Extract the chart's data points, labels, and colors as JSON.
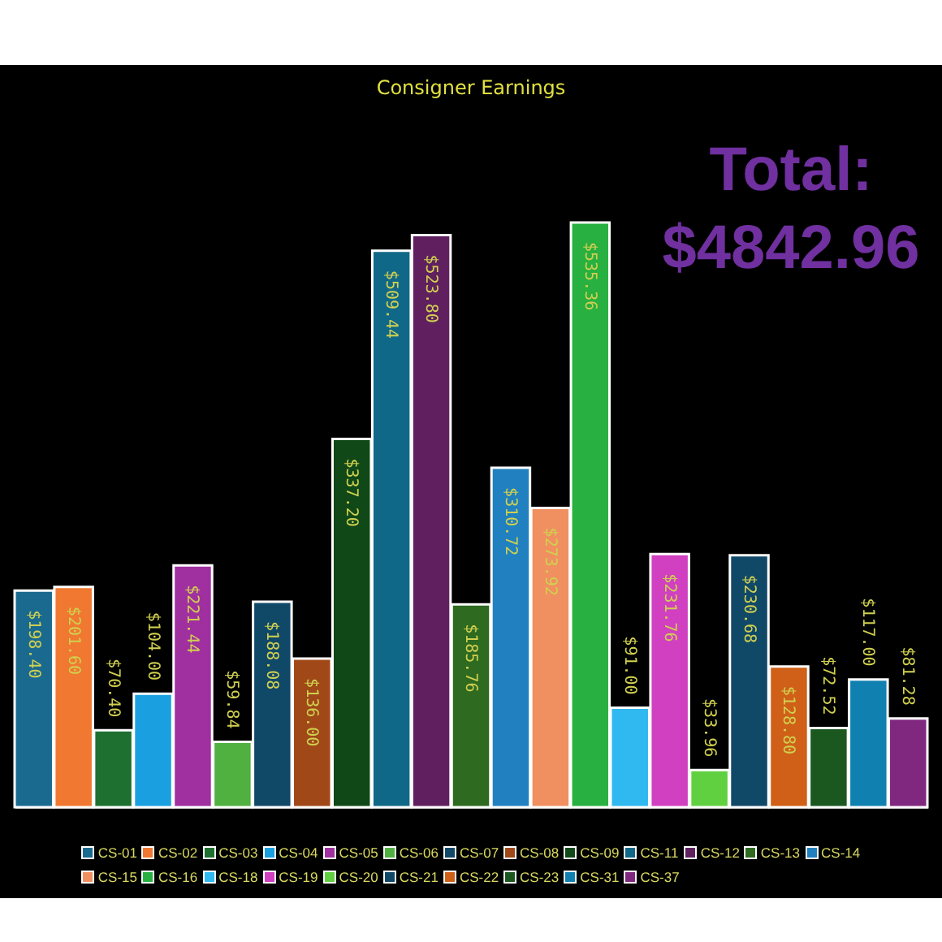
{
  "chart_data": {
    "type": "bar",
    "title": "Consigner Earnings",
    "annotations": [
      "Total: $4842.96"
    ],
    "categories": [
      null,
      null,
      null,
      null,
      null,
      null,
      null,
      null,
      null,
      null,
      null,
      null,
      null,
      null,
      null,
      null,
      null,
      null,
      null,
      null,
      null,
      null,
      null
    ],
    "series": [
      {
        "name": "CS-01",
        "color": "#1a6a90",
        "values": [
          198.4,
          null,
          null,
          null,
          null,
          null,
          null,
          null,
          null,
          null,
          null,
          null,
          null,
          null,
          null,
          null,
          null,
          null,
          null,
          null,
          null,
          null,
          null
        ],
        "value_labels": [
          "$198.40",
          null,
          null,
          null,
          null,
          null,
          null,
          null,
          null,
          null,
          null,
          null,
          null,
          null,
          null,
          null,
          null,
          null,
          null,
          null,
          null,
          null,
          null
        ]
      },
      {
        "name": "CS-02",
        "color": "#f07830",
        "values": [
          null,
          201.6,
          null,
          null,
          null,
          null,
          null,
          null,
          null,
          null,
          null,
          null,
          null,
          null,
          null,
          null,
          null,
          null,
          null,
          null,
          null,
          null,
          null
        ],
        "value_labels": [
          null,
          "$201.60",
          null,
          null,
          null,
          null,
          null,
          null,
          null,
          null,
          null,
          null,
          null,
          null,
          null,
          null,
          null,
          null,
          null,
          null,
          null,
          null,
          null
        ]
      },
      {
        "name": "CS-03",
        "color": "#1e7030",
        "values": [
          null,
          null,
          70.4,
          null,
          null,
          null,
          null,
          null,
          null,
          null,
          null,
          null,
          null,
          null,
          null,
          null,
          null,
          null,
          null,
          null,
          null,
          null,
          null
        ],
        "value_labels": [
          null,
          null,
          "$70.40",
          null,
          null,
          null,
          null,
          null,
          null,
          null,
          null,
          null,
          null,
          null,
          null,
          null,
          null,
          null,
          null,
          null,
          null,
          null,
          null
        ]
      },
      {
        "name": "CS-04",
        "color": "#1aa0e0",
        "values": [
          null,
          null,
          null,
          104.0,
          null,
          null,
          null,
          null,
          null,
          null,
          null,
          null,
          null,
          null,
          null,
          null,
          null,
          null,
          null,
          null,
          null,
          null,
          null
        ],
        "value_labels": [
          null,
          null,
          null,
          "$104.00",
          null,
          null,
          null,
          null,
          null,
          null,
          null,
          null,
          null,
          null,
          null,
          null,
          null,
          null,
          null,
          null,
          null,
          null,
          null
        ]
      },
      {
        "name": "CS-05",
        "color": "#a030a0",
        "values": [
          null,
          null,
          null,
          null,
          221.44,
          null,
          null,
          null,
          null,
          null,
          null,
          null,
          null,
          null,
          null,
          null,
          null,
          null,
          null,
          null,
          null,
          null,
          null
        ],
        "value_labels": [
          null,
          null,
          null,
          null,
          "$221.44",
          null,
          null,
          null,
          null,
          null,
          null,
          null,
          null,
          null,
          null,
          null,
          null,
          null,
          null,
          null,
          null,
          null,
          null
        ]
      },
      {
        "name": "CS-06",
        "color": "#50b040",
        "values": [
          null,
          null,
          null,
          null,
          null,
          59.84,
          null,
          null,
          null,
          null,
          null,
          null,
          null,
          null,
          null,
          null,
          null,
          null,
          null,
          null,
          null,
          null,
          null
        ],
        "value_labels": [
          null,
          null,
          null,
          null,
          null,
          "$59.84",
          null,
          null,
          null,
          null,
          null,
          null,
          null,
          null,
          null,
          null,
          null,
          null,
          null,
          null,
          null,
          null,
          null
        ]
      },
      {
        "name": "CS-07",
        "color": "#104868",
        "values": [
          null,
          null,
          null,
          null,
          null,
          null,
          188.08,
          null,
          null,
          null,
          null,
          null,
          null,
          null,
          null,
          null,
          null,
          null,
          null,
          null,
          null,
          null,
          null
        ],
        "value_labels": [
          null,
          null,
          null,
          null,
          null,
          null,
          "$188.08",
          null,
          null,
          null,
          null,
          null,
          null,
          null,
          null,
          null,
          null,
          null,
          null,
          null,
          null,
          null,
          null
        ]
      },
      {
        "name": "CS-08",
        "color": "#a04818",
        "values": [
          null,
          null,
          null,
          null,
          null,
          null,
          null,
          136.0,
          null,
          null,
          null,
          null,
          null,
          null,
          null,
          null,
          null,
          null,
          null,
          null,
          null,
          null,
          null
        ],
        "value_labels": [
          null,
          null,
          null,
          null,
          null,
          null,
          null,
          "$136.00",
          null,
          null,
          null,
          null,
          null,
          null,
          null,
          null,
          null,
          null,
          null,
          null,
          null,
          null,
          null
        ]
      },
      {
        "name": "CS-09",
        "color": "#104818",
        "values": [
          null,
          null,
          null,
          null,
          null,
          null,
          null,
          null,
          337.2,
          null,
          null,
          null,
          null,
          null,
          null,
          null,
          null,
          null,
          null,
          null,
          null,
          null,
          null
        ],
        "value_labels": [
          null,
          null,
          null,
          null,
          null,
          null,
          null,
          null,
          "$337.20",
          null,
          null,
          null,
          null,
          null,
          null,
          null,
          null,
          null,
          null,
          null,
          null,
          null,
          null
        ]
      },
      {
        "name": "CS-11",
        "color": "#106888",
        "values": [
          null,
          null,
          null,
          null,
          null,
          null,
          null,
          null,
          null,
          509.44,
          null,
          null,
          null,
          null,
          null,
          null,
          null,
          null,
          null,
          null,
          null,
          null,
          null
        ],
        "value_labels": [
          null,
          null,
          null,
          null,
          null,
          null,
          null,
          null,
          null,
          "$509.44",
          null,
          null,
          null,
          null,
          null,
          null,
          null,
          null,
          null,
          null,
          null,
          null,
          null
        ]
      },
      {
        "name": "CS-12",
        "color": "#602060",
        "values": [
          null,
          null,
          null,
          null,
          null,
          null,
          null,
          null,
          null,
          null,
          523.8,
          null,
          null,
          null,
          null,
          null,
          null,
          null,
          null,
          null,
          null,
          null,
          null
        ],
        "value_labels": [
          null,
          null,
          null,
          null,
          null,
          null,
          null,
          null,
          null,
          null,
          "$523.80",
          null,
          null,
          null,
          null,
          null,
          null,
          null,
          null,
          null,
          null,
          null,
          null
        ]
      },
      {
        "name": "CS-13",
        "color": "#2e6a20",
        "values": [
          null,
          null,
          null,
          null,
          null,
          null,
          null,
          null,
          null,
          null,
          null,
          185.76,
          null,
          null,
          null,
          null,
          null,
          null,
          null,
          null,
          null,
          null,
          null
        ],
        "value_labels": [
          null,
          null,
          null,
          null,
          null,
          null,
          null,
          null,
          null,
          null,
          null,
          "$185.76",
          null,
          null,
          null,
          null,
          null,
          null,
          null,
          null,
          null,
          null,
          null
        ]
      },
      {
        "name": "CS-14",
        "color": "#2080c0",
        "values": [
          null,
          null,
          null,
          null,
          null,
          null,
          null,
          null,
          null,
          null,
          null,
          null,
          310.72,
          null,
          null,
          null,
          null,
          null,
          null,
          null,
          null,
          null,
          null
        ],
        "value_labels": [
          null,
          null,
          null,
          null,
          null,
          null,
          null,
          null,
          null,
          null,
          null,
          null,
          "$310.72",
          null,
          null,
          null,
          null,
          null,
          null,
          null,
          null,
          null,
          null
        ]
      },
      {
        "name": "CS-15",
        "color": "#f09060",
        "values": [
          null,
          null,
          null,
          null,
          null,
          null,
          null,
          null,
          null,
          null,
          null,
          null,
          null,
          273.92,
          null,
          null,
          null,
          null,
          null,
          null,
          null,
          null,
          null
        ],
        "value_labels": [
          null,
          null,
          null,
          null,
          null,
          null,
          null,
          null,
          null,
          null,
          null,
          null,
          null,
          "$273.92",
          null,
          null,
          null,
          null,
          null,
          null,
          null,
          null,
          null
        ]
      },
      {
        "name": "CS-16",
        "color": "#28b040",
        "values": [
          null,
          null,
          null,
          null,
          null,
          null,
          null,
          null,
          null,
          null,
          null,
          null,
          null,
          null,
          535.36,
          null,
          null,
          null,
          null,
          null,
          null,
          null,
          null
        ],
        "value_labels": [
          null,
          null,
          null,
          null,
          null,
          null,
          null,
          null,
          null,
          null,
          null,
          null,
          null,
          null,
          "$535.36",
          null,
          null,
          null,
          null,
          null,
          null,
          null,
          null
        ]
      },
      {
        "name": "CS-18",
        "color": "#30b8f0",
        "values": [
          null,
          null,
          null,
          null,
          null,
          null,
          null,
          null,
          null,
          null,
          null,
          null,
          null,
          null,
          null,
          91.0,
          null,
          null,
          null,
          null,
          null,
          null,
          null
        ],
        "value_labels": [
          null,
          null,
          null,
          null,
          null,
          null,
          null,
          null,
          null,
          null,
          null,
          null,
          null,
          null,
          null,
          "$91.00",
          null,
          null,
          null,
          null,
          null,
          null,
          null
        ]
      },
      {
        "name": "CS-19",
        "color": "#d040c0",
        "values": [
          null,
          null,
          null,
          null,
          null,
          null,
          null,
          null,
          null,
          null,
          null,
          null,
          null,
          null,
          null,
          null,
          231.76,
          null,
          null,
          null,
          null,
          null,
          null
        ],
        "value_labels": [
          null,
          null,
          null,
          null,
          null,
          null,
          null,
          null,
          null,
          null,
          null,
          null,
          null,
          null,
          null,
          null,
          "$231.76",
          null,
          null,
          null,
          null,
          null,
          null
        ]
      },
      {
        "name": "CS-20",
        "color": "#60d040",
        "values": [
          null,
          null,
          null,
          null,
          null,
          null,
          null,
          null,
          null,
          null,
          null,
          null,
          null,
          null,
          null,
          null,
          null,
          33.96,
          null,
          null,
          null,
          null,
          null
        ],
        "value_labels": [
          null,
          null,
          null,
          null,
          null,
          null,
          null,
          null,
          null,
          null,
          null,
          null,
          null,
          null,
          null,
          null,
          null,
          "$33.96",
          null,
          null,
          null,
          null,
          null
        ]
      },
      {
        "name": "CS-21",
        "color": "#104868",
        "values": [
          null,
          null,
          null,
          null,
          null,
          null,
          null,
          null,
          null,
          null,
          null,
          null,
          null,
          null,
          null,
          null,
          null,
          null,
          230.68,
          null,
          null,
          null,
          null
        ],
        "value_labels": [
          null,
          null,
          null,
          null,
          null,
          null,
          null,
          null,
          null,
          null,
          null,
          null,
          null,
          null,
          null,
          null,
          null,
          null,
          "$230.68",
          null,
          null,
          null,
          null
        ]
      },
      {
        "name": "CS-22",
        "color": "#d06018",
        "values": [
          null,
          null,
          null,
          null,
          null,
          null,
          null,
          null,
          null,
          null,
          null,
          null,
          null,
          null,
          null,
          null,
          null,
          null,
          null,
          128.8,
          null,
          null,
          null
        ],
        "value_labels": [
          null,
          null,
          null,
          null,
          null,
          null,
          null,
          null,
          null,
          null,
          null,
          null,
          null,
          null,
          null,
          null,
          null,
          null,
          null,
          "$128.80",
          null,
          null,
          null
        ]
      },
      {
        "name": "CS-23",
        "color": "#1a5820",
        "values": [
          null,
          null,
          null,
          null,
          null,
          null,
          null,
          null,
          null,
          null,
          null,
          null,
          null,
          null,
          null,
          null,
          null,
          null,
          null,
          null,
          72.52,
          null,
          null
        ],
        "value_labels": [
          null,
          null,
          null,
          null,
          null,
          null,
          null,
          null,
          null,
          null,
          null,
          null,
          null,
          null,
          null,
          null,
          null,
          null,
          null,
          null,
          "$72.52",
          null,
          null
        ]
      },
      {
        "name": "CS-31",
        "color": "#1080b0",
        "values": [
          null,
          null,
          null,
          null,
          null,
          null,
          null,
          null,
          null,
          null,
          null,
          null,
          null,
          null,
          null,
          null,
          null,
          null,
          null,
          null,
          null,
          117.0,
          null
        ],
        "value_labels": [
          null,
          null,
          null,
          null,
          null,
          null,
          null,
          null,
          null,
          null,
          null,
          null,
          null,
          null,
          null,
          null,
          null,
          null,
          null,
          null,
          null,
          "$117.00",
          null
        ]
      },
      {
        "name": "CS-37",
        "color": "#802880",
        "values": [
          null,
          null,
          null,
          null,
          null,
          null,
          null,
          null,
          null,
          null,
          null,
          null,
          null,
          null,
          null,
          null,
          null,
          null,
          null,
          null,
          null,
          null,
          81.28
        ],
        "value_labels": [
          null,
          null,
          null,
          null,
          null,
          null,
          null,
          null,
          null,
          null,
          null,
          null,
          null,
          null,
          null,
          null,
          null,
          null,
          null,
          null,
          null,
          null,
          "$81.28"
        ]
      }
    ],
    "stacked": true,
    "legend": "bottom",
    "grid": false
  }
}
